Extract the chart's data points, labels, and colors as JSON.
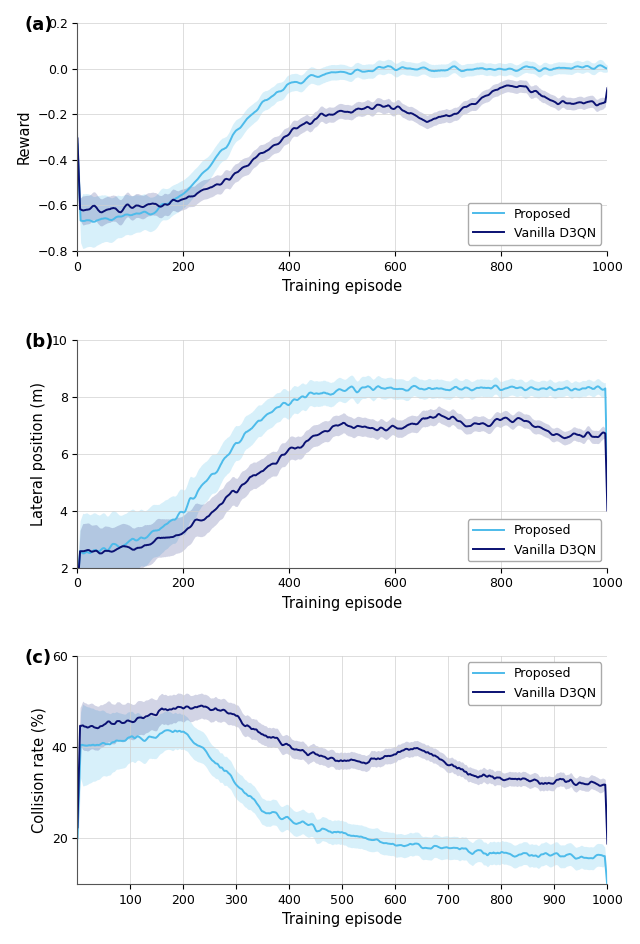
{
  "proposed_color": "#4DBBEA",
  "vanilla_color": "#0A1172",
  "proposed_fill_alpha": 0.22,
  "vanilla_fill_alpha": 0.18,
  "line_width": 1.4,
  "panel_a": {
    "title": "(a)",
    "ylabel": "Reward",
    "xlabel": "Training episode",
    "xlim": [
      0,
      1000
    ],
    "ylim": [
      -0.8,
      0.2
    ],
    "yticks": [
      -0.8,
      -0.6,
      -0.4,
      -0.2,
      0.0,
      0.2
    ],
    "xticks": [
      0,
      200,
      400,
      600,
      800,
      1000
    ]
  },
  "panel_b": {
    "title": "(b)",
    "ylabel": "Lateral position (m)",
    "xlabel": "Training episode",
    "xlim": [
      0,
      1000
    ],
    "ylim": [
      2,
      10
    ],
    "yticks": [
      2,
      4,
      6,
      8,
      10
    ],
    "xticks": [
      0,
      200,
      400,
      600,
      800,
      1000
    ]
  },
  "panel_c": {
    "title": "(c)",
    "ylabel": "Collision rate (%)",
    "xlabel": "Training episode",
    "xlim": [
      0,
      1000
    ],
    "ylim": [
      10,
      60
    ],
    "yticks": [
      20,
      40,
      60
    ],
    "xticks": [
      100,
      200,
      300,
      400,
      500,
      600,
      700,
      800,
      900,
      1000
    ]
  },
  "legend_labels": [
    "Proposed",
    "Vanilla D3QN"
  ],
  "seed": 7
}
